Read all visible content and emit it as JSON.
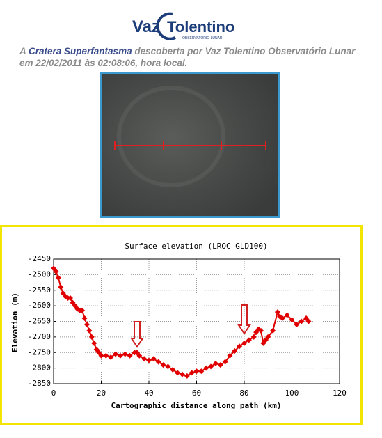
{
  "header": {
    "logo_left": "Vaz",
    "logo_right": "Tolentino",
    "logo_sub": "OBSERVATÓRIO LUNAR",
    "caption": [
      "A",
      "Cratera Superfantasma",
      "descoberta por Vaz Tolentino Observatório Lunar em 22/02/2011 às 02:08:06, hora local."
    ]
  },
  "chart_data": {
    "type": "line",
    "title": "Surface elevation (LROC GLD100)",
    "x_label": "Cartographic distance along path (km)",
    "y_label": "Elevation (m)",
    "x": [
      0,
      1,
      2,
      3,
      4,
      5,
      6,
      7,
      8,
      9,
      10,
      11,
      12,
      13,
      14,
      15,
      16,
      17,
      18,
      19,
      20,
      22,
      24,
      26,
      28,
      30,
      32,
      34,
      35,
      36,
      38,
      40,
      42,
      44,
      46,
      48,
      50,
      52,
      54,
      56,
      58,
      60,
      62,
      64,
      66,
      68,
      70,
      72,
      74,
      76,
      78,
      80,
      82,
      84,
      85,
      86,
      87,
      88,
      89,
      90,
      92,
      94,
      95,
      96,
      98,
      100,
      102,
      104,
      106,
      107
    ],
    "values": [
      -2480,
      -2490,
      -2510,
      -2540,
      -2560,
      -2570,
      -2575,
      -2575,
      -2590,
      -2600,
      -2610,
      -2615,
      -2615,
      -2640,
      -2660,
      -2680,
      -2700,
      -2720,
      -2740,
      -2750,
      -2760,
      -2760,
      -2765,
      -2755,
      -2760,
      -2755,
      -2760,
      -2750,
      -2750,
      -2760,
      -2770,
      -2775,
      -2770,
      -2780,
      -2790,
      -2795,
      -2805,
      -2815,
      -2820,
      -2825,
      -2815,
      -2810,
      -2810,
      -2800,
      -2795,
      -2785,
      -2790,
      -2780,
      -2760,
      -2745,
      -2730,
      -2720,
      -2710,
      -2700,
      -2685,
      -2675,
      -2680,
      -2720,
      -2710,
      -2700,
      -2680,
      -2620,
      -2635,
      -2640,
      -2630,
      -2645,
      -2660,
      -2650,
      -2640,
      -2650
    ],
    "color": "#e00000",
    "xlim": [
      0,
      120
    ],
    "xticks": [
      0,
      20,
      40,
      60,
      80,
      100,
      120
    ],
    "ylim": [
      -2850,
      -2450
    ],
    "yticks": [
      -2450,
      -2500,
      -2550,
      -2600,
      -2650,
      -2700,
      -2750,
      -2800,
      -2850
    ],
    "grid": true
  }
}
